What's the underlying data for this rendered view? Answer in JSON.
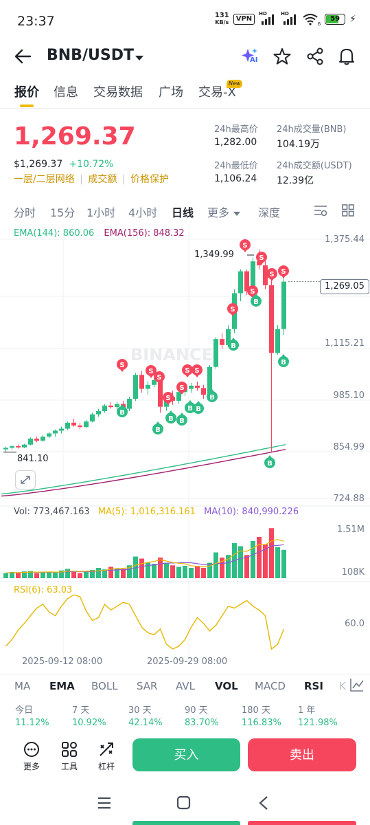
{
  "status_bar": {
    "time": "23:37",
    "net_speed_top": "131",
    "net_speed_bottom": "KB/s",
    "vpn": "VPN",
    "hd1": "HD",
    "hd2": "HD",
    "wifi_num": "6",
    "battery": "59"
  },
  "header": {
    "pair": "BNB/USDT",
    "ai_label": "AI",
    "icons": [
      "back-arrow-icon",
      "ai-sparkle-icon",
      "star-icon",
      "share-icon",
      "bell-icon"
    ]
  },
  "tabs": [
    {
      "label": "报价",
      "active": true
    },
    {
      "label": "信息",
      "active": false
    },
    {
      "label": "交易数据",
      "active": false
    },
    {
      "label": "广场",
      "active": false
    },
    {
      "label": "交易-X",
      "active": false
    }
  ],
  "tab_badge": "New",
  "ticker": {
    "last_price": "1,269.37",
    "usd_price": "$1,269.37",
    "change_pct": "+10.72%",
    "tags": [
      "一层/二层网络",
      "成交额",
      "价格保护"
    ],
    "high_label": "24h最高价",
    "high_value": "1,282.00",
    "low_label": "24h最低价",
    "low_value": "1,106.24",
    "vol_base_label": "24h成交量(BNB)",
    "vol_base_value": "104.19万",
    "vol_quote_label": "24h成交额(USDT)",
    "vol_quote_value": "12.39亿"
  },
  "periods": [
    {
      "label": "分时",
      "active": false
    },
    {
      "label": "15分",
      "active": false
    },
    {
      "label": "1小时",
      "active": false
    },
    {
      "label": "4小时",
      "active": false
    },
    {
      "label": "日线",
      "active": true
    },
    {
      "label": "更多",
      "active": false
    },
    {
      "label": "深度",
      "active": false
    }
  ],
  "chart_data": {
    "type": "candlestick",
    "indicators": {
      "ema144_label": "EMA(144): 860.06",
      "ema156_label": "EMA(156): 848.32"
    },
    "y_ticks": [
      "1,375.44",
      "1,115.21",
      "985.10",
      "854.99",
      "724.88"
    ],
    "ylim": [
      724.88,
      1375.44
    ],
    "annotations": {
      "max_price": "1,349.99",
      "min_price": "841.10",
      "current_price": "1,269.05"
    },
    "watermark": "BINANCE",
    "candles": [
      [
        848,
        855,
        842,
        852
      ],
      [
        852,
        858,
        846,
        856
      ],
      [
        856,
        860,
        850,
        853
      ],
      [
        853,
        862,
        851,
        860
      ],
      [
        860,
        878,
        858,
        875
      ],
      [
        875,
        880,
        866,
        870
      ],
      [
        870,
        884,
        867,
        880
      ],
      [
        880,
        892,
        876,
        888
      ],
      [
        888,
        898,
        880,
        895
      ],
      [
        895,
        905,
        888,
        900
      ],
      [
        900,
        918,
        896,
        915
      ],
      [
        915,
        925,
        905,
        908
      ],
      [
        908,
        915,
        898,
        904
      ],
      [
        904,
        922,
        902,
        918
      ],
      [
        918,
        940,
        916,
        936
      ],
      [
        936,
        950,
        930,
        944
      ],
      [
        944,
        962,
        940,
        958
      ],
      [
        958,
        966,
        950,
        954
      ],
      [
        954,
        968,
        948,
        962
      ],
      [
        962,
        970,
        945,
        950
      ],
      [
        950,
        980,
        944,
        975
      ],
      [
        975,
        1040,
        970,
        1035
      ],
      [
        1035,
        1045,
        990,
        1000
      ],
      [
        1000,
        1020,
        985,
        1010
      ],
      [
        1010,
        1028,
        1004,
        1022
      ],
      [
        1022,
        1030,
        940,
        955
      ],
      [
        955,
        985,
        945,
        980
      ],
      [
        980,
        995,
        960,
        970
      ],
      [
        970,
        1000,
        962,
        992
      ],
      [
        992,
        1010,
        982,
        1000
      ],
      [
        1000,
        1015,
        990,
        1008
      ],
      [
        1008,
        1018,
        995,
        1002
      ],
      [
        1002,
        1010,
        975,
        985
      ],
      [
        985,
        1060,
        982,
        1055
      ],
      [
        1055,
        1130,
        1050,
        1125
      ],
      [
        1125,
        1140,
        1100,
        1110
      ],
      [
        1110,
        1160,
        1105,
        1150
      ],
      [
        1150,
        1250,
        1140,
        1240
      ],
      [
        1240,
        1300,
        1220,
        1295
      ],
      [
        1295,
        1300,
        1235,
        1245
      ],
      [
        1245,
        1330,
        1240,
        1320
      ],
      [
        1320,
        1349.99,
        1300,
        1310
      ],
      [
        1310,
        1320,
        1250,
        1260
      ],
      [
        1260,
        1280,
        841.1,
        1090
      ],
      [
        1090,
        1160,
        1085,
        1150
      ],
      [
        1150,
        1282,
        1135,
        1269.05
      ]
    ],
    "volume": {
      "vol_label": "Vol: 773,467.163",
      "ma5_label": "MA(5): 1,016,316.161",
      "ma10_label": "MA(10): 840,990.226",
      "y_ticks": [
        "1.51M",
        "108K"
      ]
    },
    "rsi": {
      "label": "RSI(6): 63.03",
      "y_tick": "60.0"
    },
    "x_ticks": [
      "2025-09-12 08:00",
      "2025-09-29 08:00"
    ]
  },
  "indicator_tabs": [
    {
      "label": "MA",
      "active": false
    },
    {
      "label": "EMA",
      "active": true
    },
    {
      "label": "BOLL",
      "active": false
    },
    {
      "label": "SAR",
      "active": false
    },
    {
      "label": "AVL",
      "active": false
    },
    {
      "label": "VOL",
      "active": true
    },
    {
      "label": "MACD",
      "active": false
    },
    {
      "label": "RSI",
      "active": true
    },
    {
      "label": "K",
      "active": false
    }
  ],
  "performance": [
    {
      "label": "今日",
      "value": "11.12%"
    },
    {
      "label": "7 天",
      "value": "10.92%"
    },
    {
      "label": "30 天",
      "value": "42.14%"
    },
    {
      "label": "90 天",
      "value": "83.70%"
    },
    {
      "label": "180 天",
      "value": "116.83%"
    },
    {
      "label": "1 年",
      "value": "121.98%"
    }
  ],
  "bottom_bar": {
    "more": "更多",
    "tools": "工具",
    "leverage": "杠杆",
    "buy": "买入",
    "sell": "卖出"
  },
  "colors": {
    "up": "#2ebd85",
    "down": "#f6465d",
    "accent": "#f0b90b",
    "ema144": "#2ebd85",
    "ema156": "#a0216f",
    "ma5": "#e6b800",
    "ma10": "#8a5ad6"
  }
}
